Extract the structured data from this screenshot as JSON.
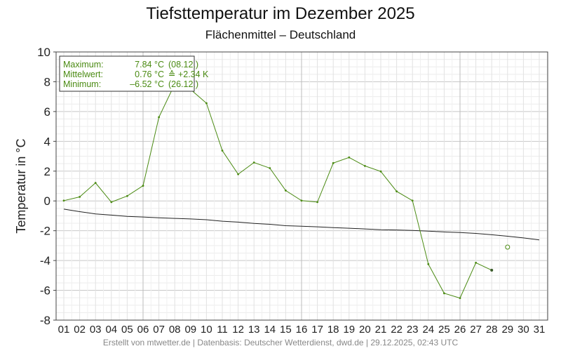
{
  "chart_data": {
    "type": "line",
    "title": "Tiefsttemperatur im Dezember 2025",
    "subtitle": "Flächenmittel – Deutschland",
    "ylabel": "Temperatur in °C",
    "xlabel": "",
    "ylim": [
      -8,
      10
    ],
    "yticks": [
      10,
      8,
      6,
      4,
      2,
      0,
      -2,
      -4,
      -6,
      -8
    ],
    "categories": [
      "01",
      "02",
      "03",
      "04",
      "05",
      "06",
      "07",
      "08",
      "09",
      "10",
      "11",
      "12",
      "13",
      "14",
      "15",
      "16",
      "17",
      "18",
      "19",
      "20",
      "21",
      "22",
      "23",
      "24",
      "25",
      "26",
      "27",
      "28",
      "29",
      "30",
      "31"
    ],
    "grid": true,
    "series": [
      {
        "role": "observed",
        "color": "#4a8a12",
        "values": [
          0.02,
          0.27,
          1.21,
          -0.08,
          0.33,
          1.02,
          5.62,
          7.84,
          7.48,
          6.56,
          3.38,
          1.79,
          2.58,
          2.2,
          0.7,
          0.02,
          -0.08,
          2.54,
          2.92,
          2.35,
          1.98,
          0.64,
          0.02,
          -4.24,
          -6.2,
          -6.52,
          -4.15,
          -4.65,
          null,
          null,
          null
        ]
      },
      {
        "role": "climate-reference",
        "color": "#222222",
        "values": [
          -0.55,
          -0.72,
          -0.87,
          -0.95,
          -1.04,
          -1.08,
          -1.13,
          -1.17,
          -1.21,
          -1.26,
          -1.36,
          -1.42,
          -1.51,
          -1.57,
          -1.66,
          -1.7,
          -1.74,
          -1.79,
          -1.83,
          -1.88,
          -1.93,
          -1.95,
          -1.98,
          -2.03,
          -2.08,
          -2.12,
          -2.18,
          -2.27,
          -2.37,
          -2.48,
          -2.62
        ]
      }
    ],
    "forecast_points": [
      {
        "day": "29",
        "value": -3.1
      }
    ],
    "legend_position": "top-left",
    "stats": [
      {
        "label": "Maximum:",
        "value": "7.84 °C",
        "extra": "(08.12.)"
      },
      {
        "label": "Mittelwert:",
        "value": "0.76 °C",
        "extra": "≙ +2.34 K"
      },
      {
        "label": "Minimum:",
        "value": "–6.52 °C",
        "extra": "(26.12.)"
      }
    ]
  },
  "footer": "Erstellt von mtwetter.de | Datenbasis: Deutscher Wetterdienst, dwd.de | 29.12.2025, 02:43 UTC"
}
